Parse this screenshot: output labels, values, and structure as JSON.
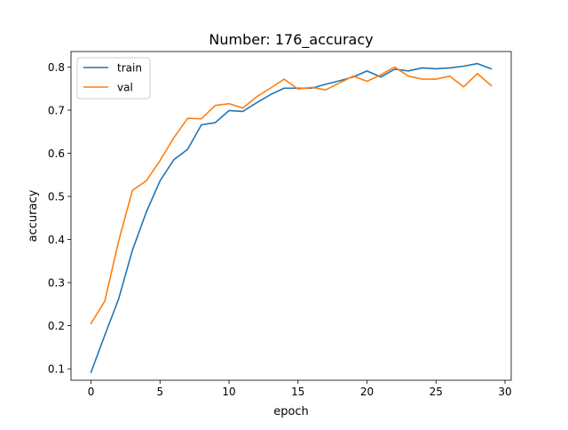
{
  "chart_data": {
    "type": "line",
    "title": "Number: 176_accuracy",
    "xlabel": "epoch",
    "ylabel": "accuracy",
    "xlim": [
      -1.45,
      30.45
    ],
    "ylim": [
      0.0735,
      0.836
    ],
    "xticks": [
      0,
      5,
      10,
      15,
      20,
      25,
      30
    ],
    "yticks": [
      0.1,
      0.2,
      0.3,
      0.4,
      0.5,
      0.6,
      0.7,
      0.8
    ],
    "grid": false,
    "legend_position": "top-left",
    "x": [
      0,
      1,
      2,
      3,
      4,
      5,
      6,
      7,
      8,
      9,
      10,
      11,
      12,
      13,
      14,
      15,
      16,
      17,
      18,
      19,
      20,
      21,
      22,
      23,
      24,
      25,
      26,
      27,
      28,
      29
    ],
    "series": [
      {
        "name": "train",
        "color": "#1f77b4",
        "values": [
          0.092,
          0.178,
          0.262,
          0.375,
          0.463,
          0.536,
          0.585,
          0.609,
          0.666,
          0.671,
          0.699,
          0.697,
          0.717,
          0.736,
          0.751,
          0.751,
          0.751,
          0.76,
          0.768,
          0.777,
          0.791,
          0.777,
          0.795,
          0.791,
          0.798,
          0.796,
          0.798,
          0.802,
          0.808,
          0.796
        ]
      },
      {
        "name": "val",
        "color": "#ff7f0e",
        "values": [
          0.205,
          0.257,
          0.396,
          0.514,
          0.536,
          0.583,
          0.636,
          0.681,
          0.68,
          0.711,
          0.715,
          0.705,
          0.731,
          0.751,
          0.772,
          0.749,
          0.753,
          0.747,
          0.763,
          0.779,
          0.767,
          0.782,
          0.8,
          0.779,
          0.772,
          0.772,
          0.779,
          0.754,
          0.785,
          0.757
        ]
      }
    ]
  }
}
